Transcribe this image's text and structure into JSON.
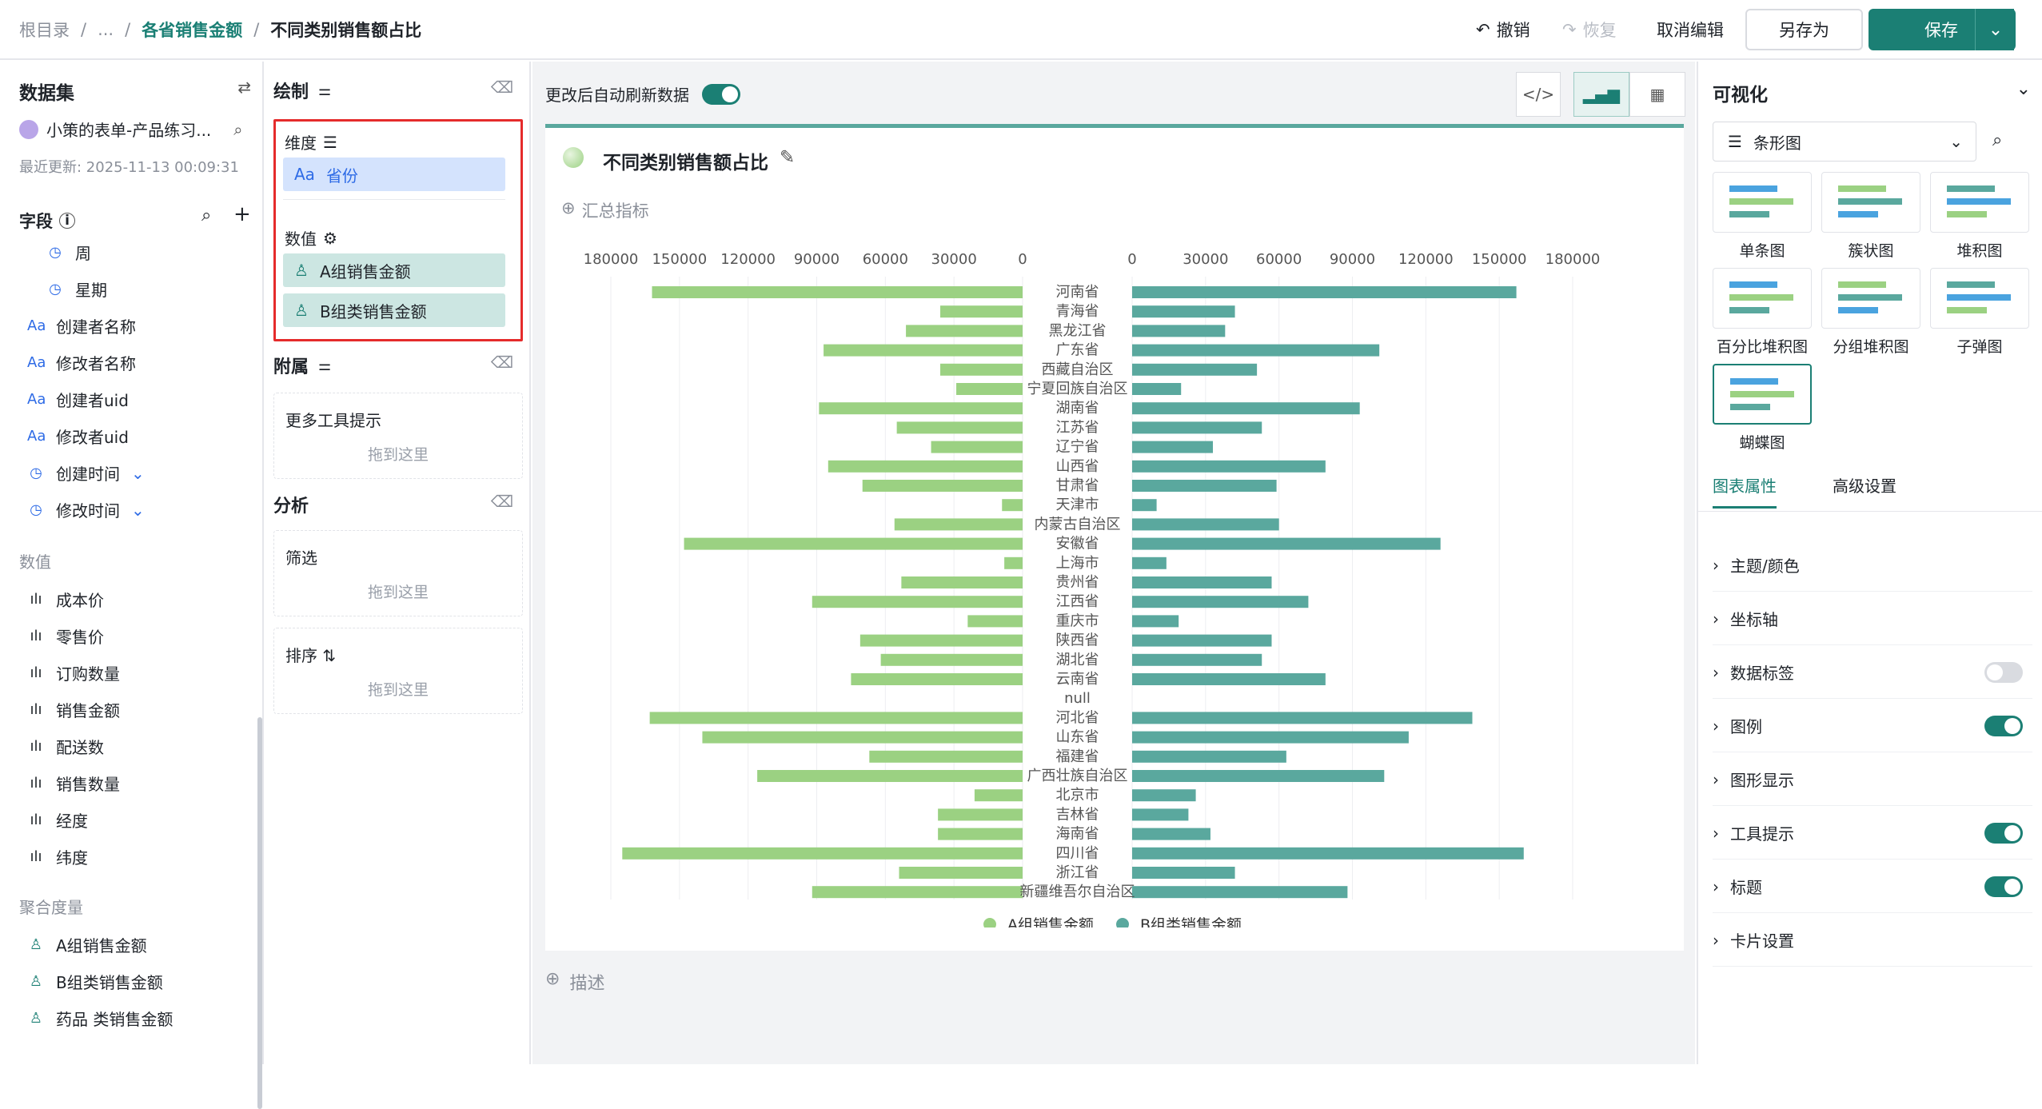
{
  "breadcrumb": {
    "root": "根目录",
    "ellipsis": "...",
    "parent": "各省销售金额",
    "current": "不同类别销售额占比"
  },
  "toolbar": {
    "undo": "撤销",
    "redo": "恢复",
    "cancel_edit": "取消编辑",
    "save_as": "另存为",
    "save": "保存"
  },
  "dataset_panel": {
    "title": "数据集",
    "dataset_name": "小策的表单-产品练习...",
    "updated": "最近更新: 2025-11-13 00:09:31",
    "fields_title": "字段",
    "time_fields": [
      "周",
      "星期"
    ],
    "text_fields": [
      "创建者名称",
      "修改者名称",
      "创建者uid",
      "修改者uid"
    ],
    "date_fields": [
      "创建时间",
      "修改时间"
    ],
    "numeric_group": "数值",
    "numeric_fields": [
      "成本价",
      "零售价",
      "订购数量",
      "销售金额",
      "配送数",
      "销售数量",
      "经度",
      "纬度"
    ],
    "agg_group": "聚合度量",
    "agg_fields": [
      "A组销售金额",
      "B组类销售金额",
      "药品 类销售金额"
    ]
  },
  "draw_panel": {
    "title": "绘制",
    "dimension_label": "维度",
    "dimension_value": "省份",
    "measure_label": "数值",
    "measures": [
      "A组销售金额",
      "B组类销售金额"
    ],
    "attach_title": "附属",
    "tooltip_label": "更多工具提示",
    "drop_hint": "拖到这里",
    "analysis_title": "分析",
    "filter_label": "筛选",
    "sort_label": "排序"
  },
  "canvas": {
    "auto_refresh": "更改后自动刷新数据",
    "chart_title": "不同类别销售额占比",
    "summary": "汇总指标",
    "describe": "描述"
  },
  "chart_data": {
    "type": "bar",
    "orientation": "horizontal-butterfly",
    "categories": [
      "河南省",
      "青海省",
      "黑龙江省",
      "广东省",
      "西藏自治区",
      "宁夏回族自治区",
      "湖南省",
      "江苏省",
      "辽宁省",
      "山西省",
      "甘肃省",
      "天津市",
      "内蒙古自治区",
      "安徽省",
      "上海市",
      "贵州省",
      "江西省",
      "重庆市",
      "陕西省",
      "湖北省",
      "云南省",
      "null",
      "河北省",
      "山东省",
      "福建省",
      "广西壮族自治区",
      "北京市",
      "吉林省",
      "海南省",
      "四川省",
      "浙江省",
      "新疆维吾尔自治区"
    ],
    "series": [
      {
        "name": "A组销售金额",
        "color": "#9bd182",
        "values": [
          162000,
          36000,
          51000,
          87000,
          36000,
          29000,
          89000,
          55000,
          40000,
          85000,
          70000,
          9000,
          56000,
          148000,
          8000,
          53000,
          92000,
          24000,
          71000,
          62000,
          75000,
          0,
          163000,
          140000,
          67000,
          116000,
          21000,
          37000,
          37000,
          175000,
          54000,
          92000
        ]
      },
      {
        "name": "B组类销售金额",
        "color": "#5aa89e",
        "values": [
          157000,
          42000,
          38000,
          101000,
          51000,
          20000,
          93000,
          53000,
          33000,
          79000,
          59000,
          10000,
          60000,
          126000,
          14000,
          57000,
          72000,
          19000,
          57000,
          53000,
          79000,
          0,
          139000,
          113000,
          63000,
          103000,
          26000,
          23000,
          32000,
          160000,
          42000,
          88000
        ]
      }
    ],
    "xticks_left": [
      "180000",
      "150000",
      "120000",
      "90000",
      "60000",
      "30000",
      "0"
    ],
    "xticks_right": [
      "0",
      "30000",
      "60000",
      "90000",
      "120000",
      "150000",
      "180000"
    ],
    "xlim": [
      0,
      180000
    ],
    "legend": "bottom"
  },
  "viz_panel": {
    "title": "可视化",
    "selected": "条形图",
    "types": [
      "单条图",
      "簇状图",
      "堆积图",
      "百分比堆积图",
      "分组堆积图",
      "子弹图",
      "蝴蝶图"
    ],
    "tab_props": "图表属性",
    "tab_adv": "高级设置",
    "props": [
      "主题/颜色",
      "坐标轴",
      "数据标签",
      "图例",
      "图形显示",
      "工具提示",
      "标题",
      "卡片设置"
    ]
  }
}
